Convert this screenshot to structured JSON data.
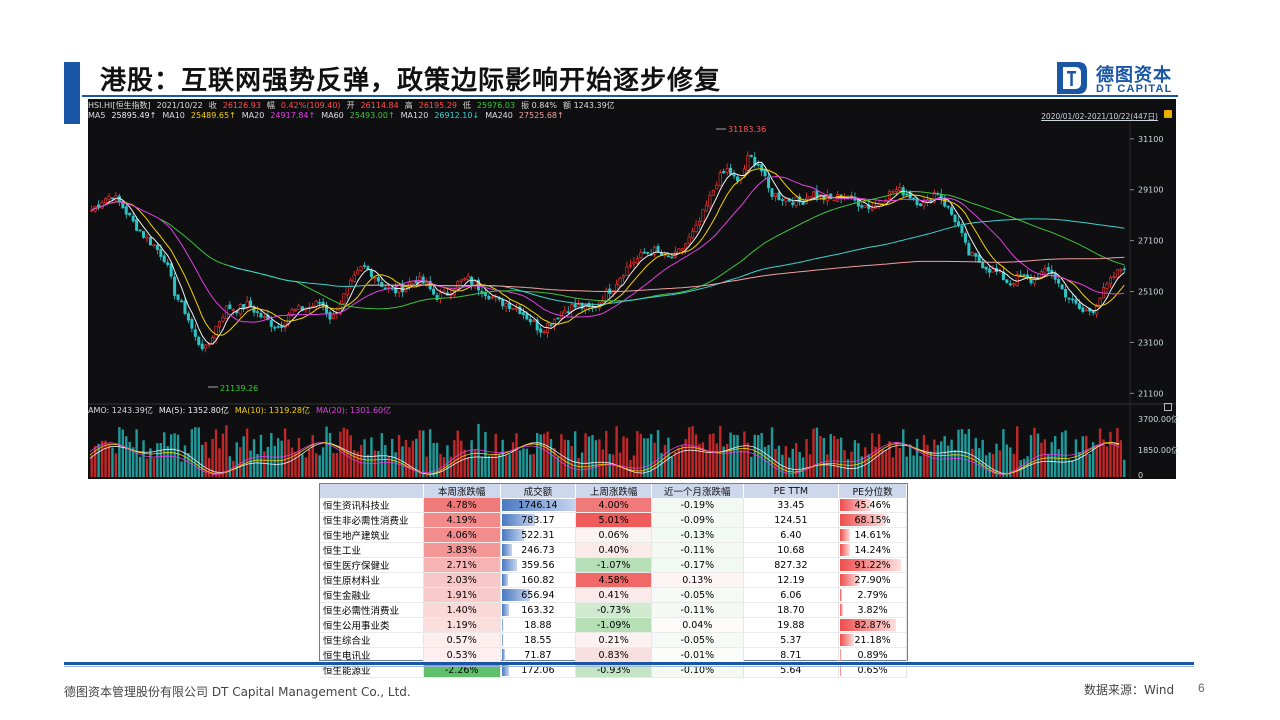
{
  "slide": {
    "title": "港股：互联网强势反弹，政策边际影响开始逐步修复",
    "logo_cn": "德图资本",
    "logo_en": "DT CAPITAL",
    "footer_left": "德图资本管理股份有限公司  DT Capital Management Co., Ltd.",
    "footer_right": "数据来源：Wind",
    "page_number": "6"
  },
  "chart_header": {
    "row1": [
      {
        "text": "HSI.HI[恒生指数]",
        "color": "#dddddd"
      },
      {
        "text": "2021/10/22",
        "color": "#dddddd"
      },
      {
        "text": "收",
        "color": "#dddddd"
      },
      {
        "text": "26126.93",
        "color": "#ff4d4d"
      },
      {
        "text": "幅",
        "color": "#dddddd"
      },
      {
        "text": "0.42%(109.40)",
        "color": "#ff4d4d"
      },
      {
        "text": "开",
        "color": "#dddddd"
      },
      {
        "text": "26114.84",
        "color": "#ff4d4d"
      },
      {
        "text": "高",
        "color": "#dddddd"
      },
      {
        "text": "26195.29",
        "color": "#ff4d4d"
      },
      {
        "text": "低",
        "color": "#dddddd"
      },
      {
        "text": "25976.03",
        "color": "#33cc33"
      },
      {
        "text": "振 0.84%",
        "color": "#dddddd"
      },
      {
        "text": "额 1243.39亿",
        "color": "#dddddd"
      }
    ],
    "row2": [
      {
        "text": "MA5",
        "color": "#dddddd"
      },
      {
        "text": "25895.49↑",
        "color": "#f0f0f0"
      },
      {
        "text": "MA10",
        "color": "#dddddd"
      },
      {
        "text": "25489.65↑",
        "color": "#f5d000"
      },
      {
        "text": "MA20",
        "color": "#dddddd"
      },
      {
        "text": "24917.84↑",
        "color": "#e040e0"
      },
      {
        "text": "MA60",
        "color": "#dddddd"
      },
      {
        "text": "25493.00↑",
        "color": "#40c040"
      },
      {
        "text": "MA120",
        "color": "#dddddd"
      },
      {
        "text": "26912.10↓",
        "color": "#40d0d0"
      },
      {
        "text": "MA240",
        "color": "#dddddd"
      },
      {
        "text": "27525.68↑",
        "color": "#f0a0a0"
      }
    ],
    "range": "2020/01/02-2021/10/22(447日)",
    "volume_row": [
      {
        "text": "AMO: 1243.39亿",
        "color": "#dddddd"
      },
      {
        "text": "MA(5): 1352.80亿",
        "color": "#f0f0f0"
      },
      {
        "text": "MA(10): 1319.28亿",
        "color": "#f5d000"
      },
      {
        "text": "MA(20): 1301.60亿",
        "color": "#e040e0"
      }
    ]
  },
  "chart_data": {
    "type": "line",
    "title": "HSI.HI[恒生指数]",
    "x_range": [
      "2020/01/02",
      "2021/10/22"
    ],
    "y_ticks": [
      "31100",
      "29100",
      "27100",
      "25100",
      "23100",
      "21100"
    ],
    "ylim": [
      20800,
      31800
    ],
    "volume_ticks": [
      "3700.00亿",
      "1850.00亿",
      "0"
    ],
    "annotations": [
      "31183.36",
      "21139.26"
    ],
    "colors": {
      "up": "#ff3333",
      "down": "#2ec4c4",
      "ma5": "#f0f0f0",
      "ma10": "#f5d000",
      "ma20": "#e040e0",
      "ma60": "#40c040",
      "ma120": "#40d0d0",
      "ma240": "#f0a0a0"
    },
    "close": [
      28300,
      28700,
      28900,
      28400,
      27800,
      27300,
      26900,
      26400,
      25000,
      24300,
      23200,
      22800,
      23800,
      24500,
      24400,
      24600,
      24200,
      23900,
      23700,
      24300,
      24400,
      24500,
      24700,
      24000,
      24800,
      25500,
      26100,
      25800,
      25300,
      25100,
      25300,
      25600,
      25400,
      24900,
      25000,
      25400,
      25600,
      25300,
      25000,
      24700,
      24600,
      24400,
      24000,
      23600,
      23900,
      24300,
      24500,
      24500,
      24400,
      24900,
      25300,
      25900,
      26300,
      26600,
      26700,
      26400,
      26500,
      27000,
      27600,
      28500,
      29500,
      29900,
      29300,
      30400,
      30100,
      29000,
      28800,
      28700,
      28600,
      29000,
      28800,
      28700,
      28900,
      28700,
      28500,
      28400,
      28800,
      29100,
      29000,
      28700,
      28500,
      29100,
      28400,
      27800,
      26600,
      26300,
      26000,
      25800,
      25400,
      25700,
      25500,
      25800,
      25900,
      25200,
      24700,
      24300,
      24400,
      25100,
      25700,
      26100
    ]
  },
  "table": {
    "headers": [
      "",
      "本周涨跌幅",
      "成交额",
      "上周涨跌幅",
      "近一个月涨跌幅",
      "PE TTM",
      "PE分位数"
    ],
    "rows": [
      {
        "name": "恒生资讯科技业",
        "week": "4.78%",
        "amount": "1746.14",
        "last_week": "4.00%",
        "month": "-0.19%",
        "pe": "33.45",
        "pe_pct": "45.46%",
        "amount_ratio": 1.0,
        "pct_ratio": 0.4546,
        "week_color": "#f07a7a",
        "last_color": "#f07a7a",
        "month_color": "#f2f8f2"
      },
      {
        "name": "恒生非必需性消费业",
        "week": "4.19%",
        "amount": "783.17",
        "last_week": "5.01%",
        "month": "-0.09%",
        "pe": "124.51",
        "pe_pct": "68.15%",
        "amount_ratio": 0.448,
        "pct_ratio": 0.6815,
        "week_color": "#f28a8a",
        "last_color": "#ef5a5a",
        "month_color": "#f4f9f4"
      },
      {
        "name": "恒生地产建筑业",
        "week": "4.06%",
        "amount": "522.31",
        "last_week": "0.06%",
        "month": "-0.13%",
        "pe": "6.40",
        "pe_pct": "14.61%",
        "amount_ratio": 0.299,
        "pct_ratio": 0.1461,
        "week_color": "#f28d8d",
        "last_color": "#fcf3f3",
        "month_color": "#f3f9f3"
      },
      {
        "name": "恒生工业",
        "week": "3.83%",
        "amount": "246.73",
        "last_week": "0.40%",
        "month": "-0.11%",
        "pe": "10.68",
        "pe_pct": "14.24%",
        "amount_ratio": 0.141,
        "pct_ratio": 0.1424,
        "week_color": "#f39696",
        "last_color": "#fbeaea",
        "month_color": "#f4f9f4"
      },
      {
        "name": "恒生医疗保健业",
        "week": "2.71%",
        "amount": "359.56",
        "last_week": "-1.07%",
        "month": "-0.17%",
        "pe": "827.32",
        "pe_pct": "91.22%",
        "amount_ratio": 0.206,
        "pct_ratio": 0.9122,
        "week_color": "#f6b4b4",
        "last_color": "#b8e0b8",
        "month_color": "#f2f8f2"
      },
      {
        "name": "恒生原材料业",
        "week": "2.03%",
        "amount": "160.82",
        "last_week": "4.58%",
        "month": "0.13%",
        "pe": "12.19",
        "pe_pct": "27.90%",
        "amount_ratio": 0.092,
        "pct_ratio": 0.279,
        "week_color": "#f8c7c7",
        "last_color": "#f06868",
        "month_color": "#fdf5f5"
      },
      {
        "name": "恒生金融业",
        "week": "1.91%",
        "amount": "656.94",
        "last_week": "0.41%",
        "month": "-0.05%",
        "pe": "6.06",
        "pe_pct": "2.79%",
        "amount_ratio": 0.376,
        "pct_ratio": 0.0279,
        "week_color": "#f8caca",
        "last_color": "#fbeaea",
        "month_color": "#f6faf6"
      },
      {
        "name": "恒生必需性消费业",
        "week": "1.40%",
        "amount": "163.32",
        "last_week": "-0.73%",
        "month": "-0.11%",
        "pe": "18.70",
        "pe_pct": "3.82%",
        "amount_ratio": 0.094,
        "pct_ratio": 0.0382,
        "week_color": "#fad8d8",
        "last_color": "#cfeacf",
        "month_color": "#f4f9f4"
      },
      {
        "name": "恒生公用事业类",
        "week": "1.19%",
        "amount": "18.88",
        "last_week": "-1.09%",
        "month": "0.04%",
        "pe": "19.88",
        "pe_pct": "82.87%",
        "amount_ratio": 0.011,
        "pct_ratio": 0.8287,
        "week_color": "#fbdede",
        "last_color": "#b6dfb6",
        "month_color": "#fefbfb"
      },
      {
        "name": "恒生综合业",
        "week": "0.57%",
        "amount": "18.55",
        "last_week": "0.21%",
        "month": "-0.05%",
        "pe": "5.37",
        "pe_pct": "21.18%",
        "amount_ratio": 0.011,
        "pct_ratio": 0.2118,
        "week_color": "#fdeeee",
        "last_color": "#fdf2f2",
        "month_color": "#f6faf6"
      },
      {
        "name": "恒生电讯业",
        "week": "0.53%",
        "amount": "71.87",
        "last_week": "0.83%",
        "month": "-0.01%",
        "pe": "8.71",
        "pe_pct": "0.89%",
        "amount_ratio": 0.041,
        "pct_ratio": 0.0089,
        "week_color": "#fdefef",
        "last_color": "#f9e0e0",
        "month_color": "#fafdfa"
      },
      {
        "name": "恒生能源业",
        "week": "-2.26%",
        "amount": "172.06",
        "last_week": "-0.93%",
        "month": "-0.10%",
        "pe": "5.64",
        "pe_pct": "0.65%",
        "amount_ratio": 0.099,
        "pct_ratio": 0.0065,
        "week_color": "#5fbf6a",
        "last_color": "#c3e5c3",
        "month_color": "#f4f9f4"
      }
    ]
  }
}
